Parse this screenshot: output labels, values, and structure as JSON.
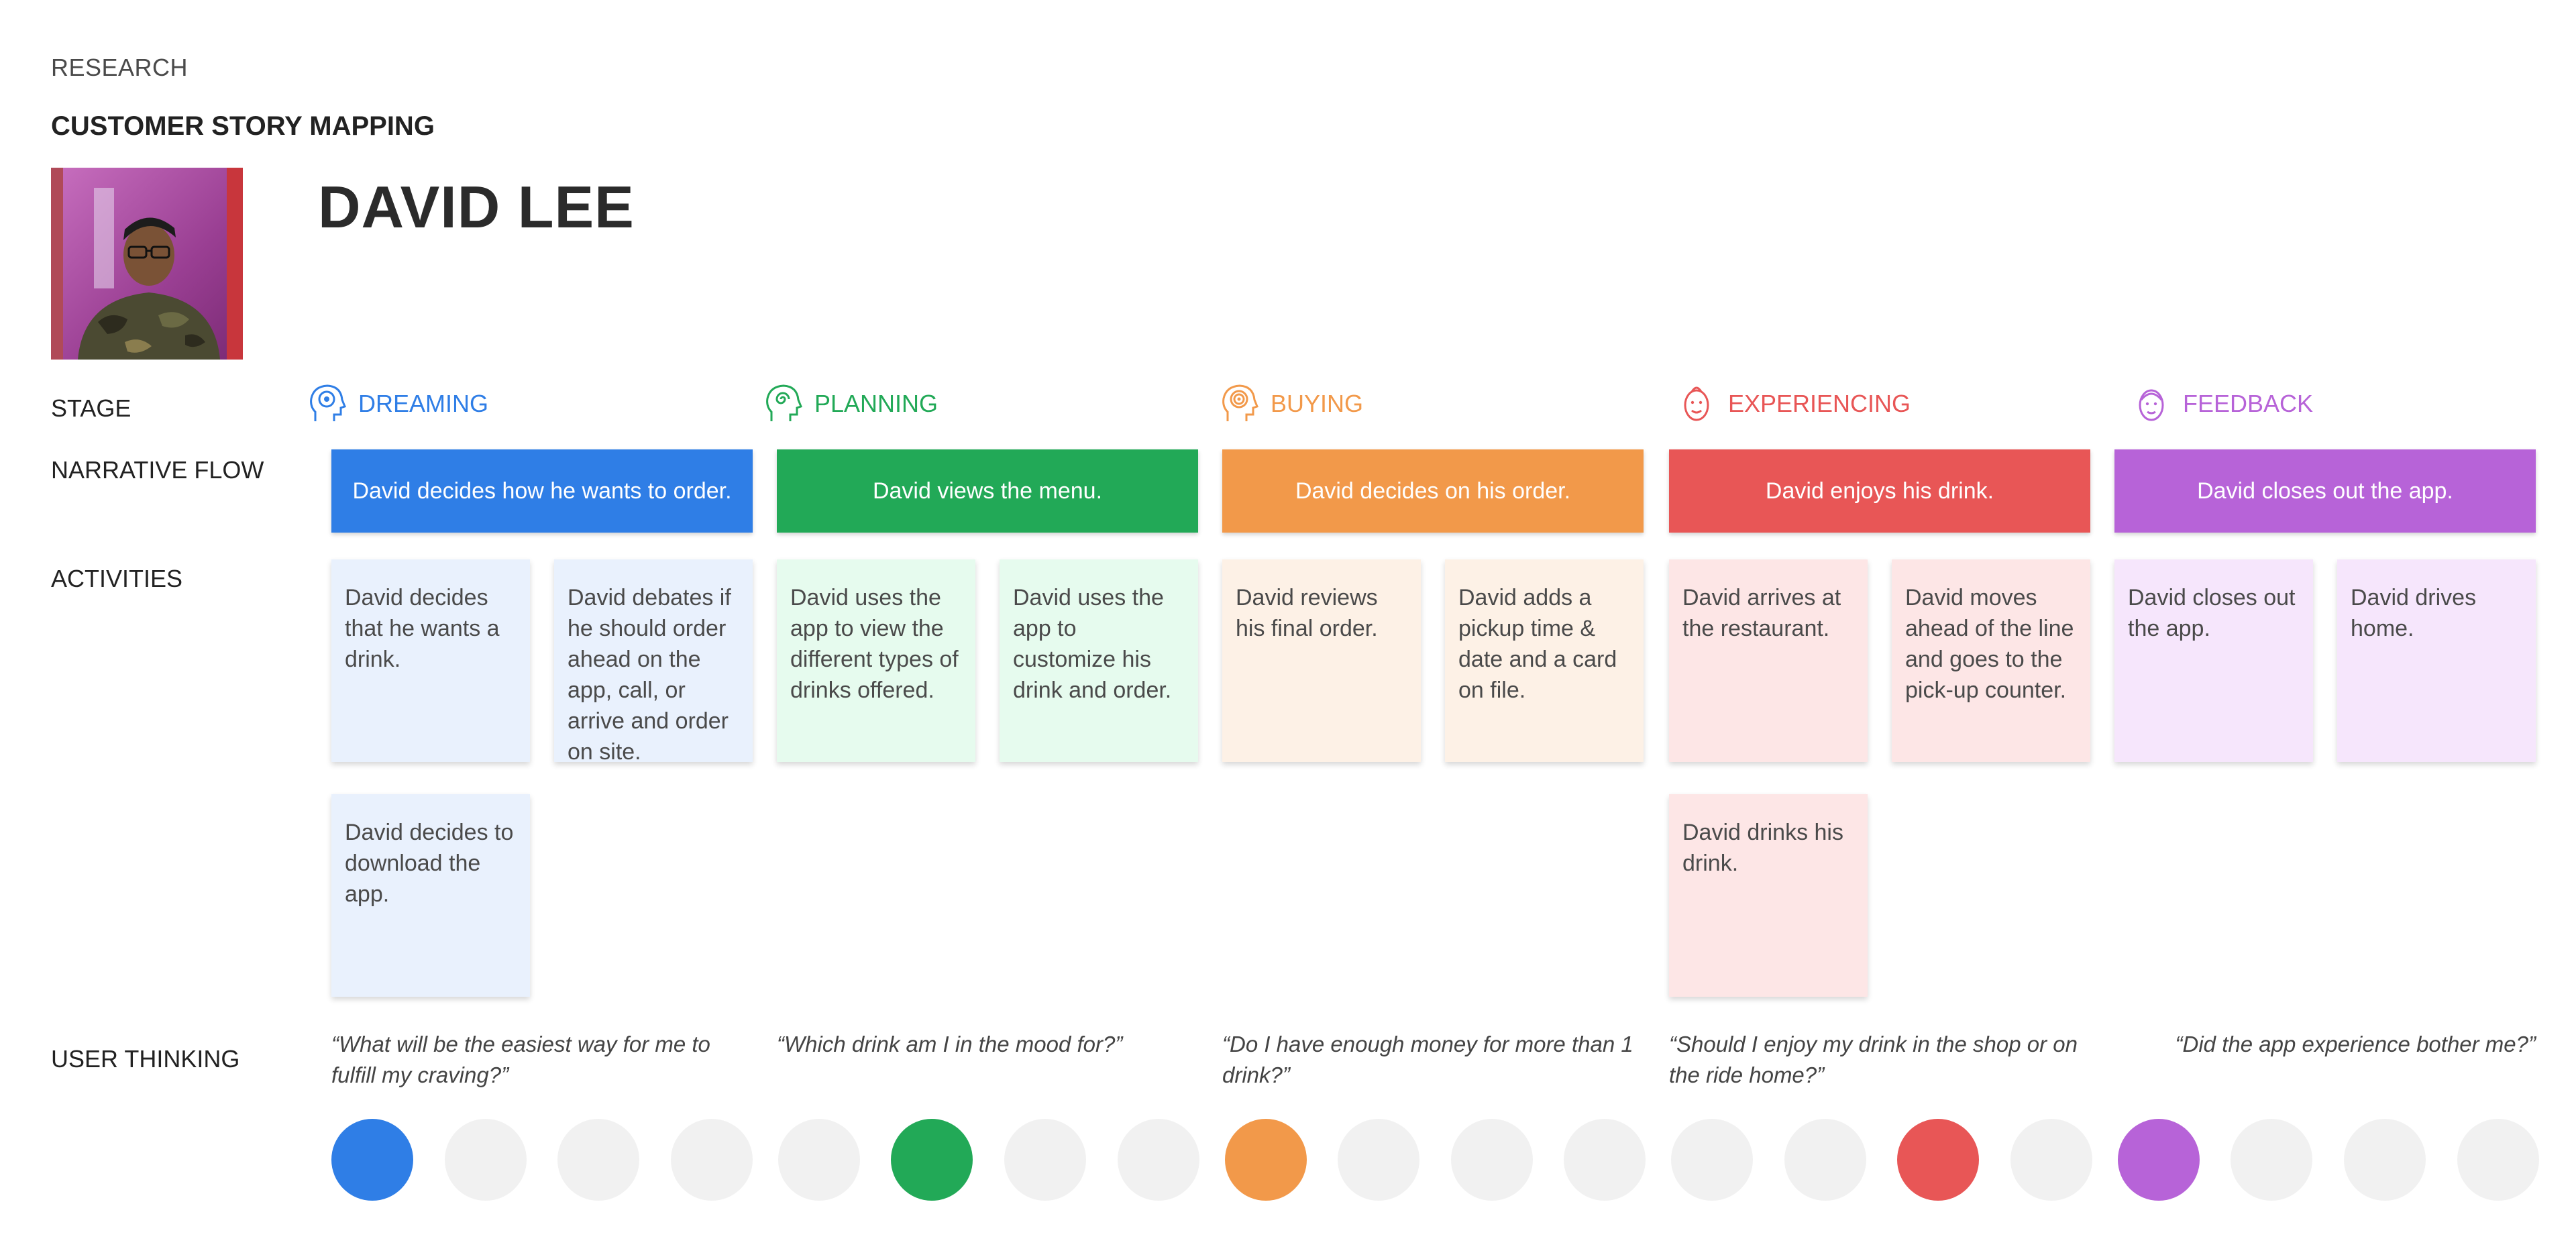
{
  "header": {
    "eyebrow": "RESEARCH",
    "subtitle": "CUSTOMER STORY MAPPING",
    "persona_name": "DAVID LEE"
  },
  "row_labels": {
    "stage": "STAGE",
    "narrative_flow": "NARRATIVE FLOW",
    "activities": "ACTIVITIES",
    "user_thinking": "USER THINKING"
  },
  "colors": {
    "dreaming": "#2f7ee6",
    "planning": "#22a957",
    "buying": "#f2994a",
    "experiencing": "#e85656",
    "feedback": "#b763d8",
    "inactive_dot": "#f1f1f1"
  },
  "stages": [
    {
      "name": "DREAMING",
      "icon": "head-thought-icon",
      "narrative": "David decides how he wants to order.",
      "activities": [
        "David decides that he wants a drink.",
        "David debates if he should order ahead on the app, call, or arrive and order on site.",
        "David decides to download the app."
      ],
      "thinking": "“What will be the easiest way for me to fulfill my craving?”"
    },
    {
      "name": "PLANNING",
      "icon": "head-spiral-icon",
      "narrative": "David views the menu.",
      "activities": [
        "David uses the app to view the different types of drinks offered.",
        "David uses the app to customize his drink and order."
      ],
      "thinking": "“Which drink am I in the mood for?”"
    },
    {
      "name": "BUYING",
      "icon": "head-target-icon",
      "narrative": "David decides on his order.",
      "activities": [
        "David reviews his final order.",
        "David adds a pickup time & date and a card on file."
      ],
      "thinking": "“Do I have enough money for more than 1 drink?”"
    },
    {
      "name": "EXPERIENCING",
      "icon": "face-enjoying-icon",
      "narrative": "David enjoys his drink.",
      "activities": [
        "David arrives at the restaurant.",
        "David moves ahead of the line and goes to the pick-up counter.",
        "David drinks his drink."
      ],
      "thinking": "“Should I enjoy my drink in the shop or on the ride home?”"
    },
    {
      "name": "FEEDBACK",
      "icon": "face-feedback-icon",
      "narrative": "David closes out the app.",
      "activities": [
        "David closes out the app.",
        "David drives home."
      ],
      "thinking": "“Did the app experience bother me?”"
    }
  ]
}
